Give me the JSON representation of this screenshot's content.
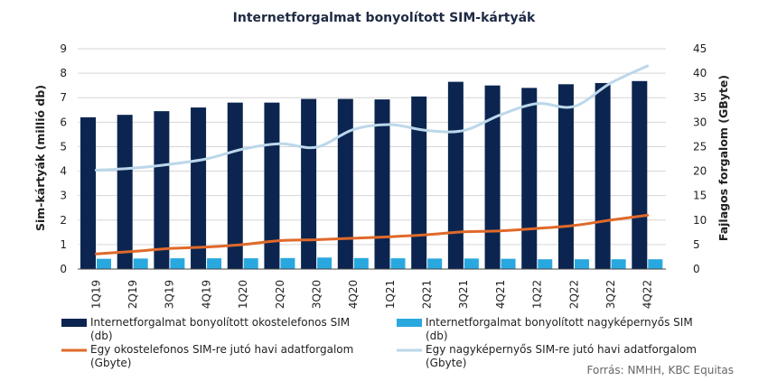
{
  "chart_data": {
    "type": "bar",
    "title": "Internetforgalmat bonyolított SIM-kártyák",
    "categories": [
      "1Q19",
      "2Q19",
      "3Q19",
      "4Q19",
      "1Q20",
      "2Q20",
      "3Q20",
      "4Q20",
      "1Q21",
      "2Q21",
      "3Q21",
      "4Q21",
      "1Q22",
      "2Q22",
      "3Q22",
      "4Q22"
    ],
    "ylabel_left": "Sim-kártyák (millió db)",
    "ylabel_right": "Fajlagos forgalom (GByte)",
    "ylim_left": [
      0,
      9
    ],
    "ylim_right": [
      0,
      45
    ],
    "yticks_left": [
      "0",
      "1",
      "2",
      "3",
      "4",
      "5",
      "6",
      "7",
      "8",
      "9"
    ],
    "yticks_right": [
      "0",
      "5",
      "10",
      "15",
      "20",
      "25",
      "30",
      "35",
      "40",
      "45"
    ],
    "grid": true,
    "legend_position": "bottom",
    "series": [
      {
        "name": "Internetforgalmat bonyolított okostelefonos SIM (db)",
        "type": "bar",
        "axis": "left",
        "color": "#0b2550",
        "values": [
          6.2,
          6.3,
          6.45,
          6.6,
          6.8,
          6.8,
          6.95,
          6.95,
          6.93,
          7.05,
          7.65,
          7.5,
          7.4,
          7.55,
          7.6,
          7.68
        ]
      },
      {
        "name": "Internetforgalmat bonyolított nagyképernyős SIM (db)",
        "type": "bar",
        "axis": "left",
        "color": "#29a8e0",
        "values": [
          0.42,
          0.43,
          0.44,
          0.44,
          0.44,
          0.45,
          0.47,
          0.45,
          0.44,
          0.43,
          0.43,
          0.42,
          0.4,
          0.4,
          0.4,
          0.4
        ]
      },
      {
        "name": "Egy okostelefonos SIM-re jutó havi adatforgalom (Gbyte)",
        "type": "line",
        "axis": "right",
        "color": "#e0692a",
        "values": [
          3.1,
          3.6,
          4.2,
          4.5,
          5.0,
          5.8,
          6.0,
          6.3,
          6.6,
          7.0,
          7.6,
          7.8,
          8.3,
          8.9,
          10.0,
          11.0
        ]
      },
      {
        "name": "Egy nagyképernyős SIM-re jutó havi adatforgalom (Gbyte)",
        "type": "line",
        "axis": "right",
        "color": "#bcd7ea",
        "values": [
          20.2,
          20.6,
          21.4,
          22.5,
          24.5,
          25.6,
          24.9,
          28.5,
          29.5,
          28.3,
          28.3,
          31.5,
          33.8,
          33.2,
          38.0,
          41.5
        ]
      }
    ],
    "source": "Forrás: NMHH, KBC Equitas"
  }
}
